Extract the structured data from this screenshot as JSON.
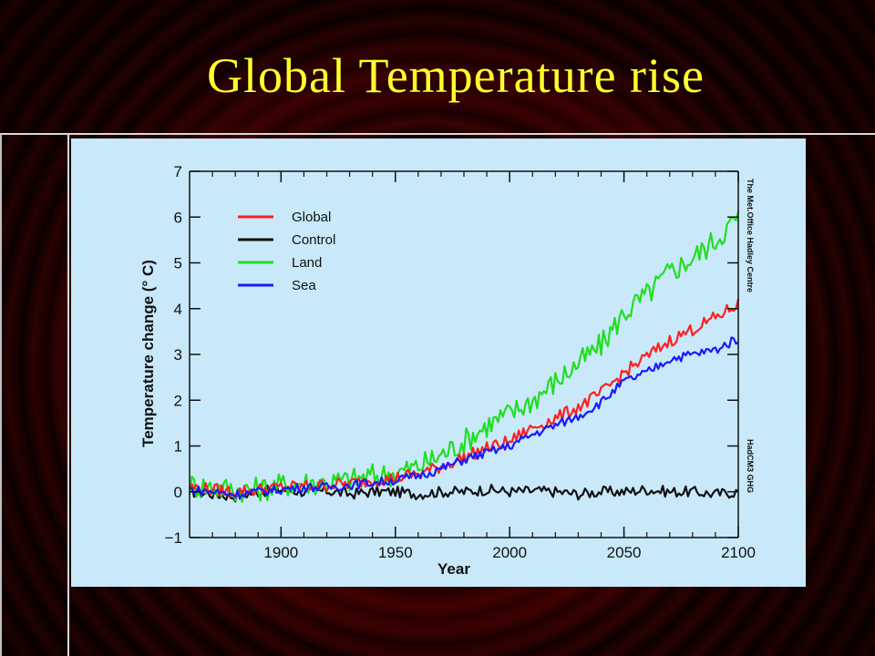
{
  "slide": {
    "title": "Global Temperature rise"
  },
  "colors": {
    "title": "#ffff2e",
    "panel": "#c9e9fb",
    "global": "#ff2020",
    "control": "#111111",
    "land": "#22dd22",
    "sea": "#1a1aff"
  },
  "side_notes": {
    "top": "The Met.Office Hadley Centre",
    "bottom": "HadCM3 GHG"
  },
  "chart_data": {
    "type": "line",
    "title": "",
    "xlabel": "Year",
    "ylabel": "Temperature change (° C)",
    "xlim": [
      1860,
      2100
    ],
    "ylim": [
      -1,
      7
    ],
    "xticks": [
      "1900",
      "1950",
      "2000",
      "2050",
      "2100"
    ],
    "yticks": [
      "−1",
      "0",
      "1",
      "2",
      "3",
      "4",
      "5",
      "6",
      "7"
    ],
    "legend_position": "top-left",
    "x": [
      1860,
      1870,
      1880,
      1890,
      1900,
      1910,
      1920,
      1930,
      1940,
      1950,
      1960,
      1970,
      1980,
      1990,
      2000,
      2010,
      2020,
      2030,
      2040,
      2050,
      2060,
      2070,
      2080,
      2090,
      2100
    ],
    "series": [
      {
        "name": "Global",
        "color": "#ff2020",
        "values": [
          0.1,
          0.05,
          0.0,
          0.05,
          0.1,
          0.12,
          0.15,
          0.18,
          0.25,
          0.3,
          0.4,
          0.55,
          0.75,
          0.95,
          1.1,
          1.4,
          1.6,
          1.85,
          2.15,
          2.6,
          2.95,
          3.3,
          3.55,
          3.8,
          4.1
        ]
      },
      {
        "name": "Control",
        "color": "#111111",
        "values": [
          0.0,
          -0.05,
          -0.1,
          0.0,
          0.05,
          0.0,
          0.02,
          -0.05,
          0.0,
          0.0,
          -0.05,
          0.0,
          0.0,
          0.05,
          0.0,
          0.02,
          0.0,
          -0.05,
          0.0,
          0.0,
          0.05,
          0.0,
          0.0,
          -0.05,
          0.0
        ]
      },
      {
        "name": "Land",
        "color": "#22dd22",
        "values": [
          0.15,
          0.1,
          0.05,
          0.05,
          0.15,
          0.2,
          0.2,
          0.25,
          0.35,
          0.4,
          0.55,
          0.8,
          1.1,
          1.45,
          1.7,
          2.0,
          2.4,
          2.8,
          3.2,
          3.9,
          4.3,
          4.8,
          5.1,
          5.5,
          6.0
        ]
      },
      {
        "name": "Sea",
        "color": "#1a1aff",
        "values": [
          0.05,
          0.0,
          -0.05,
          0.0,
          0.05,
          0.1,
          0.1,
          0.15,
          0.2,
          0.25,
          0.35,
          0.5,
          0.7,
          0.85,
          1.0,
          1.25,
          1.45,
          1.65,
          1.95,
          2.4,
          2.6,
          2.9,
          3.0,
          3.1,
          3.35
        ]
      }
    ]
  }
}
